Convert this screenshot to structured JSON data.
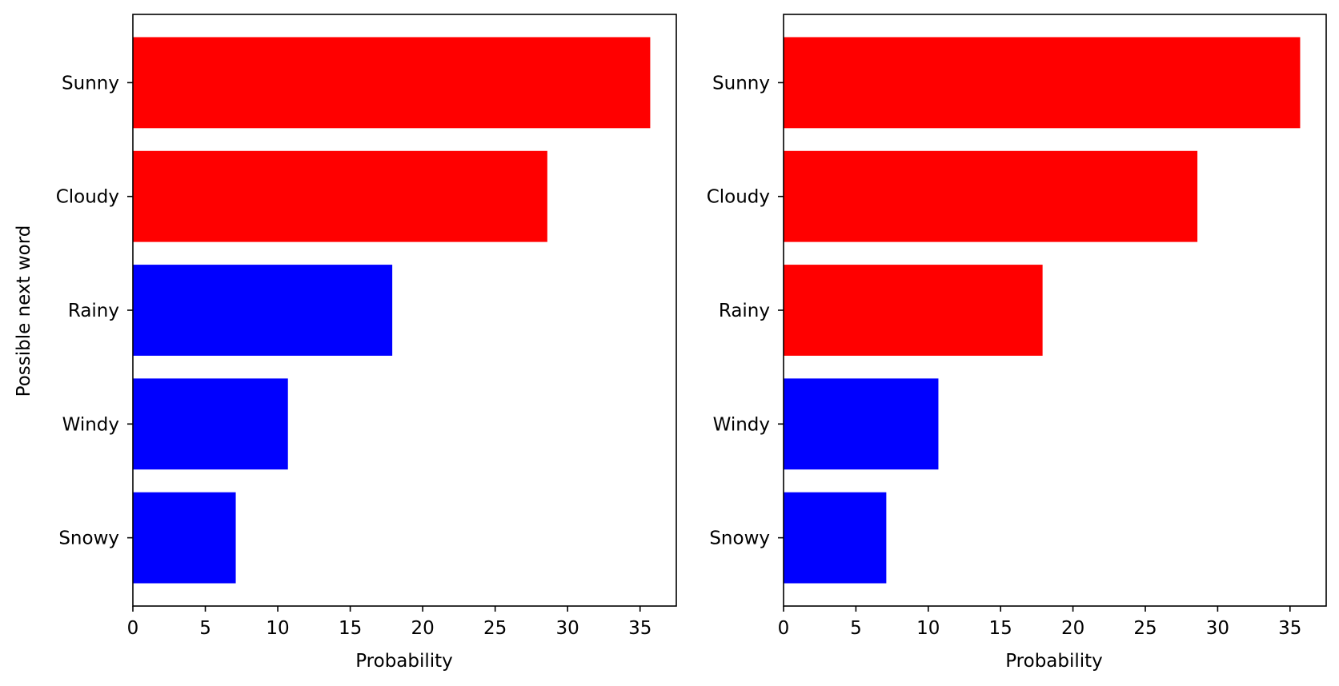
{
  "chart_data": [
    {
      "type": "bar",
      "orientation": "horizontal",
      "categories": [
        "Sunny",
        "Cloudy",
        "Rainy",
        "Windy",
        "Snowy"
      ],
      "values": [
        35.7,
        28.6,
        17.9,
        10.7,
        7.1
      ],
      "colors": [
        "#ff0000",
        "#ff0000",
        "#0000ff",
        "#0000ff",
        "#0000ff"
      ],
      "xlabel": "Probability",
      "ylabel": "Possible next word",
      "xlim": [
        0,
        37.5
      ],
      "xticks": [
        "0",
        "5",
        "10",
        "15",
        "20",
        "25",
        "30",
        "35"
      ],
      "grid": false
    },
    {
      "type": "bar",
      "orientation": "horizontal",
      "categories": [
        "Sunny",
        "Cloudy",
        "Rainy",
        "Windy",
        "Snowy"
      ],
      "values": [
        35.7,
        28.6,
        17.9,
        10.7,
        7.1
      ],
      "colors": [
        "#ff0000",
        "#ff0000",
        "#ff0000",
        "#0000ff",
        "#0000ff"
      ],
      "xlabel": "Probability",
      "ylabel": "",
      "xlim": [
        0,
        37.5
      ],
      "xticks": [
        "0",
        "5",
        "10",
        "15",
        "20",
        "25",
        "30",
        "35"
      ],
      "grid": false
    }
  ]
}
